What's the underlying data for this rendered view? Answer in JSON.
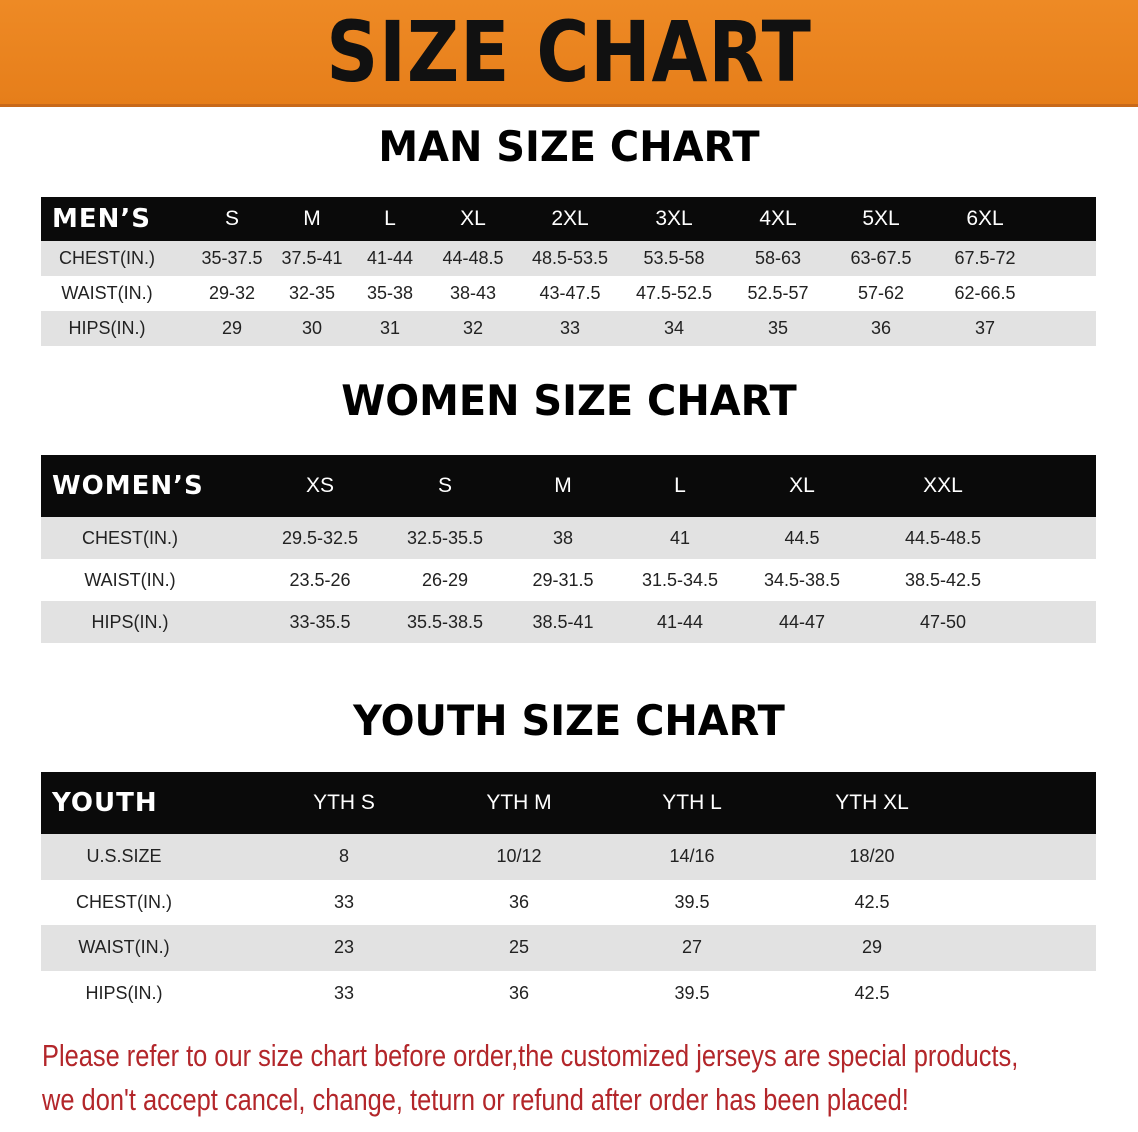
{
  "banner": {
    "title": "SIZE CHART",
    "color": "#e8831f"
  },
  "men": {
    "title": "MAN SIZE CHART",
    "header": [
      "MEN’S",
      "S",
      "M",
      "L",
      "XL",
      "2XL",
      "3XL",
      "4XL",
      "5XL",
      "6XL"
    ],
    "rows": [
      [
        "CHEST(IN.)",
        "35-37.5",
        "37.5-41",
        "41-44",
        "44-48.5",
        "48.5-53.5",
        "53.5-58",
        "58-63",
        "63-67.5",
        "67.5-72"
      ],
      [
        "WAIST(IN.)",
        "29-32",
        "32-35",
        "35-38",
        "38-43",
        "43-47.5",
        "47.5-52.5",
        "52.5-57",
        "57-62",
        "62-66.5"
      ],
      [
        "HIPS(IN.)",
        "29",
        "30",
        "31",
        "32",
        "33",
        "34",
        "35",
        "36",
        "37"
      ]
    ]
  },
  "women": {
    "title": "WOMEN SIZE CHART",
    "header": [
      "WOMEN’S",
      "XS",
      "S",
      "M",
      "L",
      "XL",
      "XXL"
    ],
    "rows": [
      [
        "CHEST(IN.)",
        "29.5-32.5",
        "32.5-35.5",
        "38",
        "41",
        "44.5",
        "44.5-48.5"
      ],
      [
        "WAIST(IN.)",
        "23.5-26",
        "26-29",
        "29-31.5",
        "31.5-34.5",
        "34.5-38.5",
        "38.5-42.5"
      ],
      [
        "HIPS(IN.)",
        "33-35.5",
        "35.5-38.5",
        "38.5-41",
        "41-44",
        "44-47",
        "47-50"
      ]
    ]
  },
  "youth": {
    "title": "YOUTH SIZE CHART",
    "header": [
      "YOUTH",
      "YTH S",
      "YTH M",
      "YTH L",
      "YTH XL"
    ],
    "rows": [
      [
        "U.S.SIZE",
        "8",
        "10/12",
        "14/16",
        "18/20"
      ],
      [
        "CHEST(IN.)",
        "33",
        "36",
        "39.5",
        "42.5"
      ],
      [
        "WAIST(IN.)",
        "23",
        "25",
        "27",
        "29"
      ],
      [
        "HIPS(IN.)",
        "33",
        "36",
        "39.5",
        "42.5"
      ]
    ]
  },
  "notice": {
    "line1": "Please refer to our size chart before order,the customized jerseys are special products,",
    "line2": "we don't accept cancel, change, teturn or refund after order has been placed!",
    "color": "#b3262a"
  }
}
